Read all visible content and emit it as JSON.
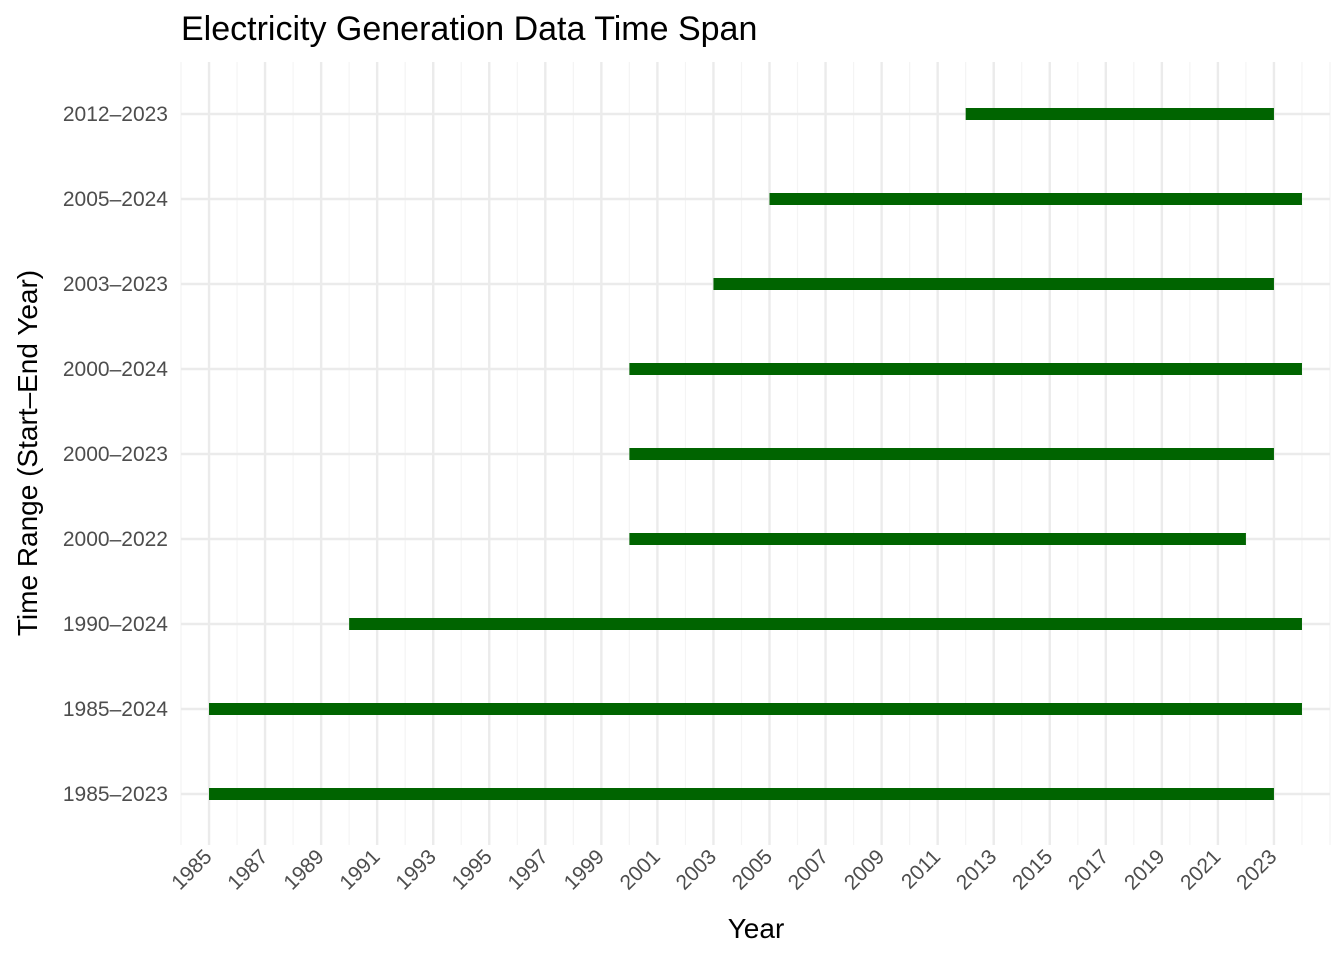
{
  "chart_data": {
    "type": "bar",
    "orientation": "horizontal-range",
    "title": "Electricity Generation Data Time Span",
    "xlabel": "Year",
    "ylabel": "Time Range (Start–End Year)",
    "xlim": [
      1984,
      2025
    ],
    "x_tick_labels": [
      "1985",
      "1987",
      "1989",
      "1991",
      "1993",
      "1995",
      "1997",
      "1999",
      "2001",
      "2003",
      "2005",
      "2007",
      "2009",
      "2011",
      "2013",
      "2015",
      "2017",
      "2019",
      "2021",
      "2023"
    ],
    "categories": [
      "1985–2023",
      "1985–2024",
      "1990–2024",
      "2000–2022",
      "2000–2023",
      "2000–2024",
      "2003–2023",
      "2005–2024",
      "2012–2023"
    ],
    "ranges": [
      {
        "start": 1985,
        "end": 2023
      },
      {
        "start": 1985,
        "end": 2024
      },
      {
        "start": 1990,
        "end": 2024
      },
      {
        "start": 2000,
        "end": 2022
      },
      {
        "start": 2000,
        "end": 2023
      },
      {
        "start": 2000,
        "end": 2024
      },
      {
        "start": 2003,
        "end": 2023
      },
      {
        "start": 2005,
        "end": 2024
      },
      {
        "start": 2012,
        "end": 2023
      }
    ],
    "grid": true,
    "legend": "none",
    "colors": {
      "bar": "#006400",
      "grid_major": "#ebebeb",
      "grid_minor": "#f4f4f4",
      "tick_text": "#4d4d4d"
    }
  }
}
